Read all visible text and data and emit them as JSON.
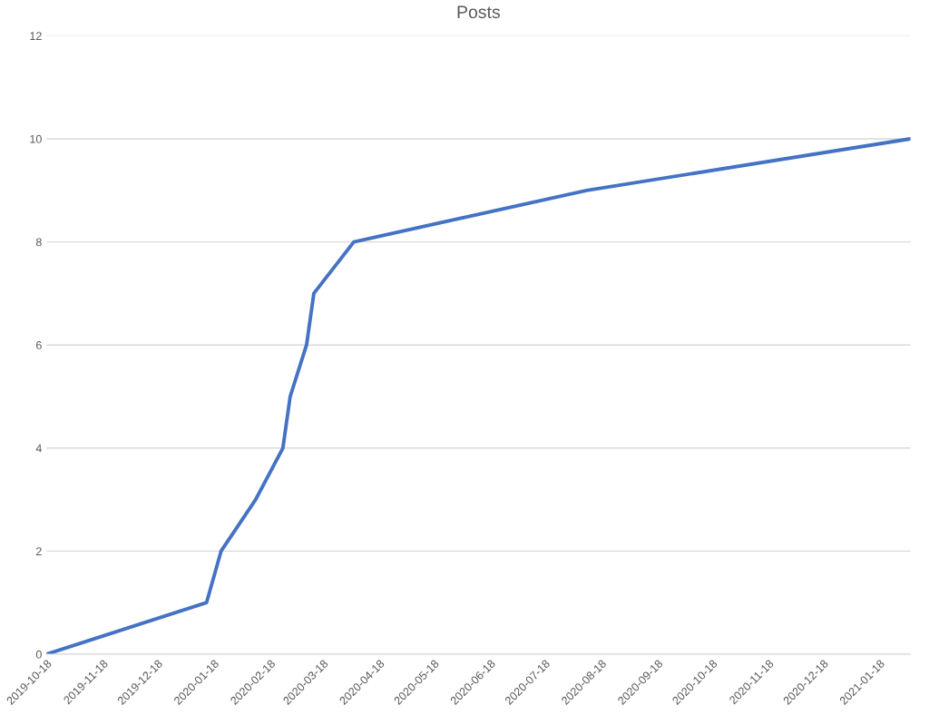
{
  "chart_data": {
    "type": "line",
    "title": "Posts",
    "x": [
      "2019-10-18",
      "2020-01-14",
      "2020-01-22",
      "2020-02-10",
      "2020-02-25",
      "2020-02-29",
      "2020-03-09",
      "2020-03-13",
      "2020-04-04",
      "2020-08-10",
      "2021-02-04"
    ],
    "series": [
      {
        "color": "#4472c4",
        "values": [
          0,
          1,
          2,
          3,
          4,
          5,
          6,
          7,
          8,
          9,
          10
        ]
      }
    ],
    "xlim": [
      "2019-10-18",
      "2021-02-04"
    ],
    "xticks": [
      "2019-10-18",
      "2019-11-18",
      "2019-12-18",
      "2020-01-18",
      "2020-02-18",
      "2020-03-18",
      "2020-04-18",
      "2020-05-18",
      "2020-06-18",
      "2020-07-18",
      "2020-08-18",
      "2020-09-18",
      "2020-10-18",
      "2020-11-18",
      "2020-12-18",
      "2021-01-18"
    ],
    "ylim": [
      0,
      12
    ],
    "yticks": [
      0,
      2,
      4,
      6,
      8,
      10,
      12
    ],
    "grid": "y",
    "marker": "none",
    "line_style": "solid",
    "legend": false
  }
}
